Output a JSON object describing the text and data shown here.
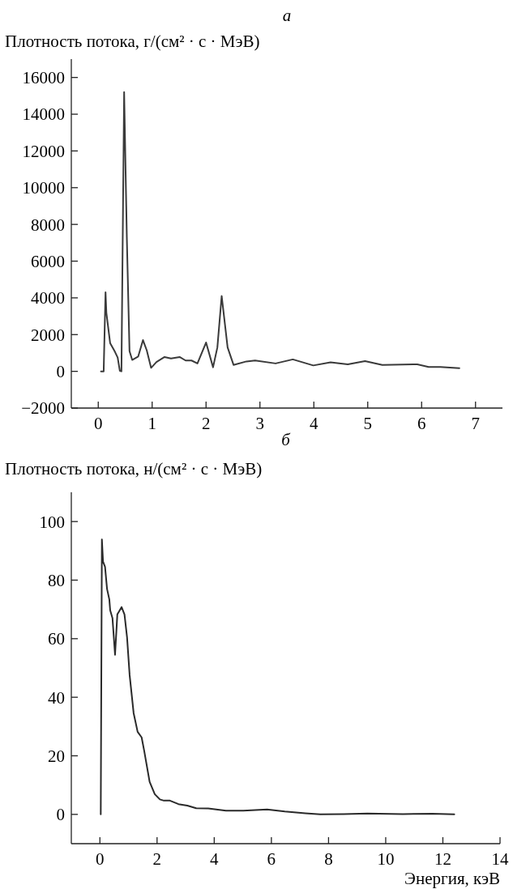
{
  "chart_data": [
    {
      "type": "line",
      "title": "а",
      "ylabel": "Плотность потока, г/(см² · с · МэВ)",
      "color": "#3a3a3a",
      "marker": "none",
      "x": [
        0.05,
        0.1,
        0.135,
        0.15,
        0.22,
        0.31,
        0.36,
        0.4,
        0.43,
        0.48,
        0.53,
        0.58,
        0.63,
        0.74,
        0.83,
        0.9,
        0.98,
        1.08,
        1.23,
        1.35,
        1.51,
        1.62,
        1.73,
        1.84,
        2.0,
        2.13,
        2.21,
        2.29,
        2.4,
        2.51,
        2.75,
        2.91,
        3.29,
        3.61,
        3.99,
        4.31,
        4.63,
        4.95,
        5.27,
        5.92,
        6.13,
        6.35,
        6.7
      ],
      "values": [
        0,
        0,
        4300,
        3200,
        1540,
        1060,
        750,
        30,
        0,
        15200,
        7300,
        1100,
        620,
        800,
        1700,
        1140,
        190,
        510,
        780,
        700,
        780,
        590,
        590,
        430,
        1570,
        220,
        1300,
        4100,
        1300,
        350,
        540,
        590,
        430,
        650,
        320,
        490,
        380,
        560,
        350,
        380,
        240,
        240,
        175
      ],
      "xlim": [
        -0.5,
        7.5
      ],
      "ylim": [
        -2000,
        17000
      ],
      "xticks": [
        0,
        1,
        2,
        3,
        4,
        5,
        6,
        7
      ],
      "yticks": [
        {
          "value": -2000,
          "label": "−2000"
        },
        0,
        2000,
        4000,
        6000,
        8000,
        10000,
        12000,
        14000,
        16000
      ]
    },
    {
      "type": "line",
      "title": "б",
      "ylabel": "Плотность потока, н/(см² · с · МэВ)",
      "xlabel": "Энергия, кэВ",
      "color": "#2a2a2a",
      "marker": "none",
      "x": [
        0.03,
        0.07,
        0.11,
        0.18,
        0.25,
        0.33,
        0.36,
        0.44,
        0.53,
        0.61,
        0.67,
        0.76,
        0.86,
        0.95,
        1.04,
        1.18,
        1.32,
        1.46,
        1.55,
        1.74,
        1.92,
        2.1,
        2.24,
        2.45,
        2.75,
        3.06,
        3.37,
        3.79,
        4.41,
        5.02,
        5.85,
        6.47,
        7.19,
        7.71,
        8.53,
        9.36,
        10.6,
        11.63,
        12.4
      ],
      "values": [
        0,
        93.9,
        86.3,
        84.5,
        77,
        73.4,
        69.7,
        67,
        54.5,
        68.3,
        69.3,
        70.8,
        68.3,
        60.5,
        47.6,
        34.6,
        28.2,
        26.3,
        21.7,
        11.1,
        6.9,
        5.1,
        4.7,
        4.7,
        3.5,
        3,
        2.1,
        2,
        1.3,
        1.3,
        1.7,
        1,
        0.4,
        0,
        0.1,
        0.3,
        0.1,
        0.2,
        0
      ],
      "xlim": [
        -1,
        14
      ],
      "ylim": [
        -10,
        110
      ],
      "xticks": [
        0,
        2,
        4,
        6,
        8,
        10,
        12,
        14
      ],
      "yticks": [
        0,
        20,
        40,
        60,
        80,
        100
      ]
    }
  ]
}
